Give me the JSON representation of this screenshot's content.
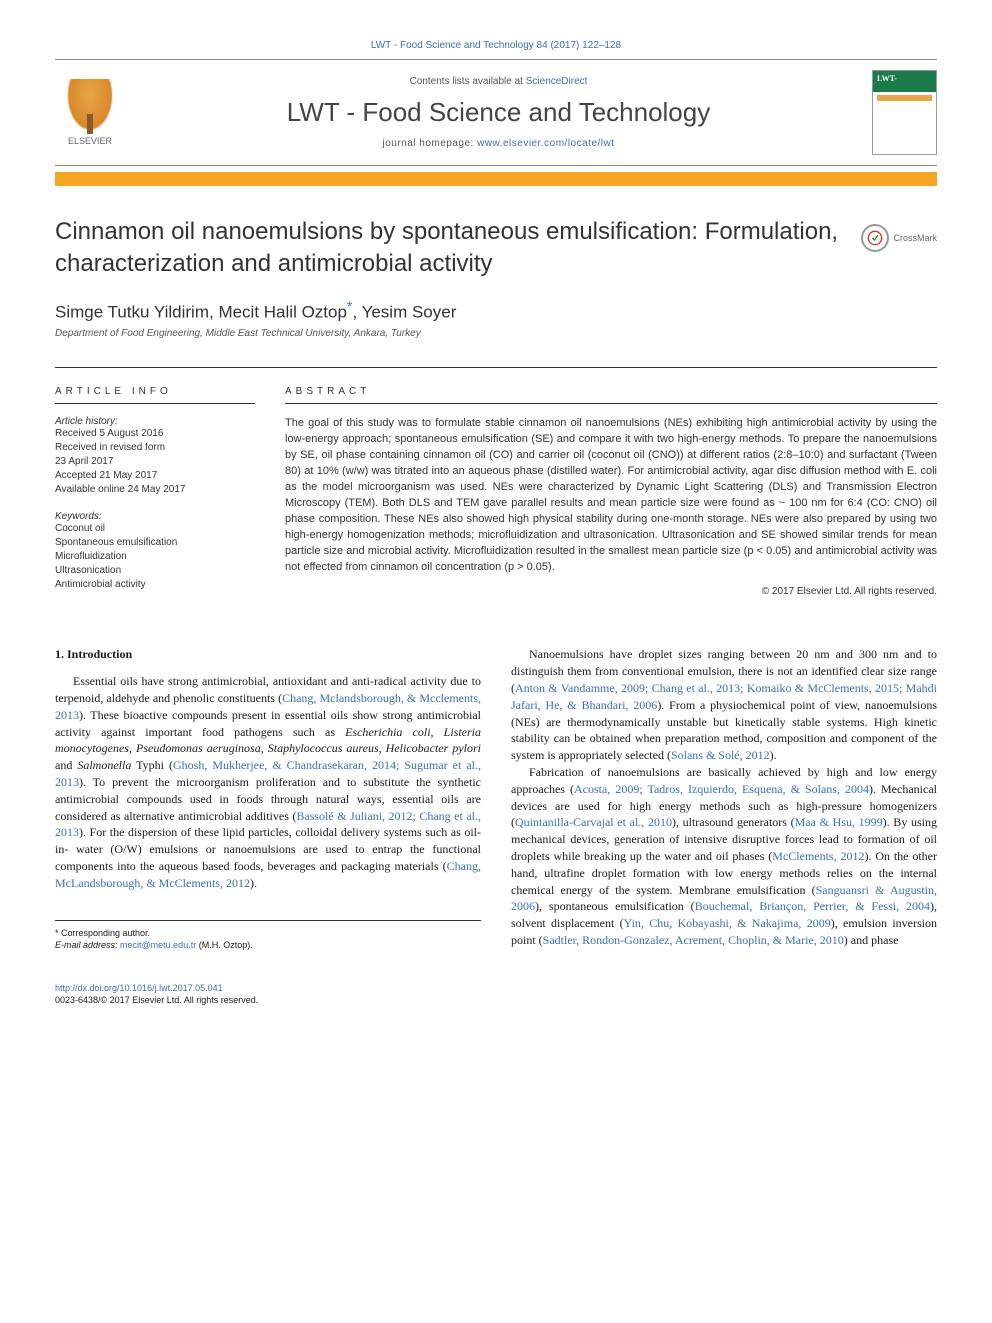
{
  "header": {
    "citation": "LWT - Food Science and Technology 84 (2017) 122–128",
    "contents_prefix": "Contents lists available at ",
    "contents_link": "ScienceDirect",
    "journal": "LWT - Food Science and Technology",
    "homepage_prefix": "journal homepage: ",
    "homepage_url": "www.elsevier.com/locate/lwt",
    "publisher_logo_label": "ELSEVIER"
  },
  "crossmark": {
    "label": "CrossMark"
  },
  "article": {
    "title": "Cinnamon oil nanoemulsions by spontaneous emulsification: Formulation, characterization and antimicrobial activity",
    "authors_html": "Simge Tutku Yildirim, Mecit Halil Oztop<sup class=\"corr\">*</sup>, Yesim Soyer",
    "affiliation": "Department of Food Engineering, Middle East Technical University, Ankara, Turkey"
  },
  "info": {
    "heading": "ARTICLE INFO",
    "history_label": "Article history:",
    "history": [
      "Received 5 August 2016",
      "Received in revised form",
      "23 April 2017",
      "Accepted 21 May 2017",
      "Available online 24 May 2017"
    ],
    "keywords_label": "Keywords:",
    "keywords": [
      "Coconut oil",
      "Spontaneous emulsification",
      "Microfluidization",
      "Ultrasonication",
      "Antimicrobial activity"
    ]
  },
  "abstract": {
    "heading": "ABSTRACT",
    "text": "The goal of this study was to formulate stable cinnamon oil nanoemulsions (NEs) exhibiting high antimicrobial activity by using the low-energy approach; spontaneous emulsification (SE) and compare it with two high-energy methods. To prepare the nanoemulsions by SE, oil phase containing cinnamon oil (CO) and carrier oil (coconut oil (CNO)) at different ratios (2:8–10:0) and surfactant (Tween 80) at 10% (w/w) was titrated into an aqueous phase (distilled water). For antimicrobial activity, agar disc diffusion method with E. coli as the model microorganism was used. NEs were characterized by Dynamic Light Scattering (DLS) and Transmission Electron Microscopy (TEM). Both DLS and TEM gave parallel results and mean particle size were found as ~ 100 nm for 6:4 (CO: CNO) oil phase composition. These NEs also showed high physical stability during one-month storage. NEs were also prepared by using two high-energy homogenization methods; microfluidization and ultrasonication. Ultrasonication and SE showed similar trends for mean particle size and microbial activity. Microfluidization resulted in the smallest mean particle size (p < 0.05) and antimicrobial activity was not effected from cinnamon oil concentration (p > 0.05).",
    "copyright": "© 2017 Elsevier Ltd. All rights reserved."
  },
  "body": {
    "section_heading": "1. Introduction",
    "col1_html": "Essential oils have strong antimicrobial, antioxidant and anti-radical activity due to terpenoid, aldehyde and phenolic constituents (<span class=\"cite\">Chang, Mclandsborough, & Mcclements, 2013</span>). These bioactive compounds present in essential oils show strong antimicrobial activity against important food pathogens such as <em>Escherichia coli, Listeria monocytogenes, Pseudomonas aeruginosa, Staphylococcus aureus, Helicobacter pylori</em> and <em>Salmonella</em> Typhi (<span class=\"cite\">Ghosh, Mukherjee, & Chandrasekaran, 2014; Sugumar et al., 2013</span>). To prevent the microorganism proliferation and to substitute the synthetic antimicrobial compounds used in foods through natural ways, essential oils are considered as alternative antimicrobial additives (<span class=\"cite\">Bassolé & Juliani, 2012; Chang et al., 2013</span>). For the dispersion of these lipid particles, colloidal delivery systems such as oil-in- water (O/W) emulsions or nanoemulsions are used to entrap the functional components into the aqueous based foods, beverages and packaging materials (<span class=\"cite\">Chang, McLandsborough, & McClements, 2012</span>).",
    "col2_p1_html": "Nanoemulsions have droplet sizes ranging between 20 nm and 300 nm and to distinguish them from conventional emulsion, there is not an identified clear size range (<span class=\"cite\">Anton & Vandamme, 2009; Chang et al., 2013; Komaiko & McClements, 2015; Mahdi Jafari, He, & Bhandari, 2006</span>). From a physiochemical point of view, nanoemulsions (NEs) are thermodynamically unstable but kinetically stable systems. High kinetic stability can be obtained when preparation method, composition and component of the system is appropriately selected (<span class=\"cite\">Solans & Solé, 2012</span>).",
    "col2_p2_html": "Fabrication of nanoemulsions are basically achieved by high and low energy approaches (<span class=\"cite\">Acosta, 2009; Tadros, Izquierdo, Esquena, & Solans, 2004</span>). Mechanical devices are used for high energy methods such as high-pressure homogenizers (<span class=\"cite\">Quintanilla-Carvajal et al., 2010</span>), ultrasound generators (<span class=\"cite\">Maa & Hsu, 1999</span>). By using mechanical devices, generation of intensive disruptive forces lead to formation of oil droplets while breaking up the water and oil phases (<span class=\"cite\">McClements, 2012</span>). On the other hand, ultrafine droplet formation with low energy methods relies on the internal chemical energy of the system. Membrane emulsification (<span class=\"cite\">Sanguansri & Augustin, 2006</span>), spontaneous emulsification (<span class=\"cite\">Bouchemal, Briançon, Perrier, & Fessi, 2004</span>), solvent displacement (<span class=\"cite\">Yin, Chu, Kobayashi, & Nakajima, 2009</span>), emulsion inversion point (<span class=\"cite\">Sadtler, Rondon-Gonzalez, Acrement, Choplin, & Marie, 2010</span>) and phase"
  },
  "footer": {
    "corr_label": "* Corresponding author.",
    "email_label": "E-mail address: ",
    "email": "mecit@metu.edu.tr",
    "email_suffix": " (M.H. Oztop).",
    "doi_url": "http://dx.doi.org/10.1016/j.lwt.2017.05.041",
    "issn_line": "0023-6438/© 2017 Elsevier Ltd. All rights reserved."
  },
  "colors": {
    "link": "#3b6fb6",
    "accent_bar": "#f5a623",
    "text": "#1a1a1a",
    "elsevier_orange": "#e8a54a"
  }
}
